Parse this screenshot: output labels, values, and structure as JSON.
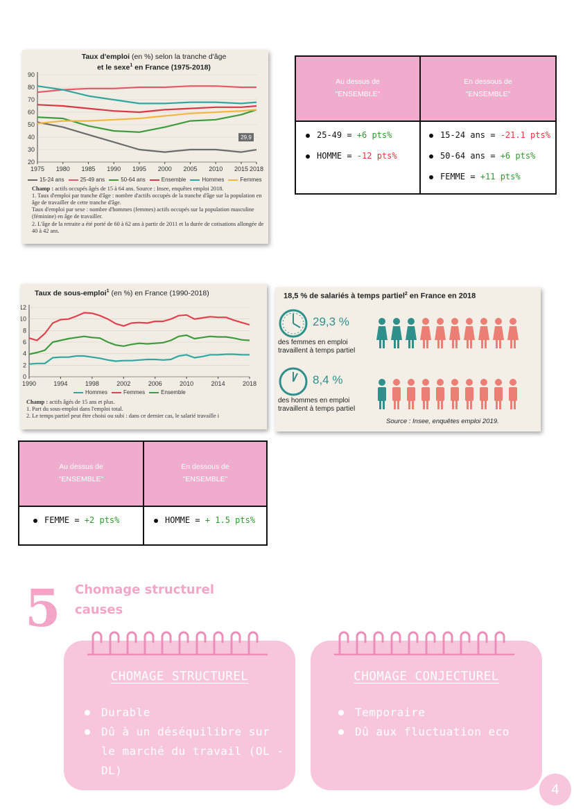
{
  "chart_data": [
    {
      "type": "line",
      "title": "Taux d'emploi (en %) selon la tranche d'âge et le sexe¹ en France (1975-2018)",
      "x": [
        1975,
        1980,
        1985,
        1990,
        1995,
        2000,
        2005,
        2010,
        2015,
        2018
      ],
      "x_ticks": [
        "1975",
        "1980",
        "1985",
        "1990",
        "1995",
        "2000",
        "2005",
        "2010",
        "2015",
        "2018"
      ],
      "y_ticks": [
        "20",
        "30",
        "40",
        "50",
        "60",
        "70",
        "80",
        "90"
      ],
      "ylim": [
        20,
        90
      ],
      "series": [
        {
          "name": "15-24 ans",
          "color": "#6b6b6b",
          "values": [
            52,
            48,
            42,
            36,
            30,
            28,
            30,
            30,
            28,
            29.9
          ]
        },
        {
          "name": "25-49 ans",
          "color": "#e45a6a",
          "values": [
            76,
            78,
            79,
            79,
            80,
            80,
            81,
            81,
            80,
            80
          ]
        },
        {
          "name": "50-64 ans",
          "color": "#3d9b3d",
          "values": [
            56,
            55,
            49,
            45,
            44,
            48,
            53,
            54,
            58,
            62
          ]
        },
        {
          "name": "Ensemble",
          "color": "#d63a46",
          "values": [
            66,
            65,
            63,
            61,
            60,
            62,
            63,
            64,
            64,
            65
          ]
        },
        {
          "name": "Hommes",
          "color": "#2fa7a0",
          "values": [
            81,
            78,
            73,
            70,
            67,
            67,
            68,
            68,
            67,
            68
          ]
        },
        {
          "name": "Femmes",
          "color": "#f2b640",
          "values": [
            51,
            53,
            53,
            54,
            55,
            57,
            59,
            60,
            61,
            62
          ]
        }
      ],
      "end_label": "29,9"
    },
    {
      "type": "line",
      "title": "Taux de sous-emploi¹ (en %) en France (1990-2018)",
      "x": [
        1990,
        1991,
        1992,
        1993,
        1994,
        1995,
        1996,
        1997,
        1998,
        1999,
        2000,
        2001,
        2002,
        2003,
        2004,
        2005,
        2006,
        2007,
        2008,
        2009,
        2010,
        2011,
        2012,
        2013,
        2014,
        2015,
        2016,
        2017,
        2018
      ],
      "x_ticks": [
        "1990",
        "1994",
        "1998",
        "2002",
        "2006",
        "2010",
        "2014",
        "2018"
      ],
      "y_ticks": [
        "0",
        "2",
        "4",
        "6",
        "8",
        "10",
        "12"
      ],
      "ylim": [
        0,
        12
      ],
      "series": [
        {
          "name": "Hommes",
          "color": "#2fa7a0",
          "values": [
            2.2,
            2.3,
            2.3,
            3.3,
            3.4,
            3.4,
            3.6,
            3.6,
            3.4,
            3.2,
            2.9,
            2.7,
            2.8,
            2.8,
            2.9,
            3.0,
            3.0,
            2.9,
            3.0,
            3.6,
            3.8,
            3.3,
            3.5,
            3.8,
            3.8,
            3.9,
            3.9,
            3.8,
            3.8
          ]
        },
        {
          "name": "Femmes",
          "color": "#e2404f",
          "values": [
            6.7,
            6.3,
            7.5,
            9.3,
            9.9,
            10.0,
            10.5,
            11.1,
            11.0,
            10.6,
            10.0,
            9.2,
            8.8,
            9.3,
            9.4,
            9.3,
            9.6,
            9.6,
            10.0,
            10.6,
            10.7,
            10.0,
            10.2,
            10.4,
            10.3,
            10.3,
            9.8,
            9.4,
            9.0
          ]
        },
        {
          "name": "Ensemble",
          "color": "#3d9b3d",
          "values": [
            3.9,
            4.2,
            4.6,
            6.0,
            6.3,
            6.6,
            6.8,
            7.0,
            6.8,
            6.7,
            6.0,
            5.5,
            5.3,
            5.6,
            5.8,
            5.7,
            5.8,
            5.9,
            6.3,
            7.0,
            7.2,
            6.6,
            6.8,
            7.0,
            6.9,
            6.9,
            6.7,
            6.4,
            6.3
          ]
        }
      ]
    }
  ],
  "chart1": {
    "title_a": "Taux d'emploi",
    "title_b": " (en %) selon la tranche d'âge",
    "title_c": "et le sexe",
    "title_sup": "1",
    "title_d": " en France (1975-2018)",
    "champ_label": "Champ :",
    "champ_text": " actifs occupés âgés de 15 à 64 ans. Source : Insee, enquêtes emploi 2018.",
    "note1": "1. Taux d'emploi par tranche d'âge : nombre d'actifs occupés de la tranche d'âge sur la population en âge de travailler de cette tranche d'âge.",
    "note1b": "Taux d'emploi par sexe : nombre d'hommes (femmes) actifs occupés sur la population masculine (féminine) en âge de travailler.",
    "note2": "2. L'âge de la retraite a été porté de 60 à 62 ans à partir de 2011 et la durée de cotisations allongée de 40 à 42 ans."
  },
  "chart2": {
    "title_a": "Taux de sous-emploi",
    "title_sup": "1",
    "title_b": " (en %) en France (1990-2018)",
    "champ_label": "Champ :",
    "champ_text": " actifs âgés de 15 ans et plus.",
    "note1": "1. Part du sous-emploi dans l'emploi total.",
    "note2": "2. Le temps partiel peut être choisi ou subi : dans ce dernier cas, le salarié travaille i"
  },
  "infographic": {
    "title": "18,5 % de salariés à temps partiel",
    "title_sup": "2",
    "title_tail": " en France en 2018",
    "women_pct": "29,3 %",
    "women_fraction": 0.293,
    "women_text_1": "des femmes en emploi",
    "women_text_2": "travaillent à temps partiel",
    "men_pct": "8,4 %",
    "men_fraction": 0.084,
    "men_text_1": "des hommes en emploi",
    "men_text_2": "travaillent à temps partiel",
    "source": "Source : Insee, enquêtes emploi 2019.",
    "highlight_color": "#2f8f8a",
    "base_color": "#ec7f75"
  },
  "table1": {
    "head_left": [
      "Au dessus de",
      "\"ENSEMBLE\""
    ],
    "head_right": [
      "En dessous de",
      "\"ENSEMBLE\""
    ],
    "left": [
      {
        "label": "25-49 = ",
        "value": "+6 pts%",
        "tone": "pos"
      },
      {
        "label": "HOMME = ",
        "value": "-12 pts%",
        "tone": "neg"
      }
    ],
    "right": [
      {
        "label": "15-24 ans = ",
        "value": "-21.1 pts%",
        "tone": "neg"
      },
      {
        "label": "50-64 ans = ",
        "value": "+6 pts%",
        "tone": "pos"
      },
      {
        "label": "FEMME = ",
        "value": "+11 pts%",
        "tone": "pos"
      }
    ]
  },
  "table2": {
    "head_left": [
      "Au dessus de",
      "\"ENSEMBLE\""
    ],
    "head_right": [
      "En dessous de",
      "\"ENSEMBLE\""
    ],
    "left": [
      {
        "label": "FEMME = ",
        "value": "+2 pts%",
        "tone": "pos"
      }
    ],
    "right": [
      {
        "label": "HOMME = ",
        "value": "+ 1.5 pts%",
        "tone": "pos"
      }
    ]
  },
  "section": {
    "number": "5",
    "title_1": "Chomage structurel",
    "title_2": "causes"
  },
  "card_left": {
    "heading": "CHOMAGE STRUCTUREL",
    "items": [
      "Durable",
      "Dû à un déséquilibre sur le marché du travail (OL - DL)"
    ]
  },
  "card_right": {
    "heading": "CHOMAGE CONJECTUREL",
    "items": [
      "Temporaire",
      "Dû aux fluctuation eco"
    ]
  },
  "page_number": "4",
  "colors": {
    "pink": "#f3a5c8",
    "pink_light": "#f7c6dc",
    "header": "#efaccd"
  }
}
